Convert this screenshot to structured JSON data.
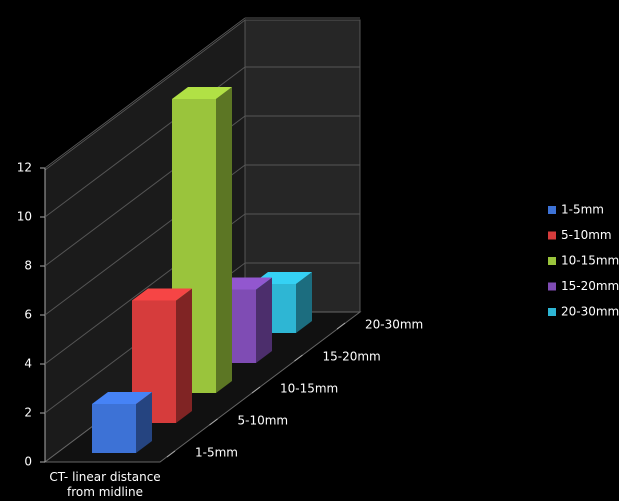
{
  "chart_data": {
    "type": "bar3d",
    "x_label": "CT- linear distance from midline",
    "categories": [
      "1-5mm",
      "5-10mm",
      "10-15mm",
      "15-20mm",
      "20-30mm"
    ],
    "values": [
      2,
      5,
      12,
      3,
      2
    ],
    "colors": [
      "#3d72d6",
      "#d63c3c",
      "#9ac43c",
      "#7f4cb4",
      "#2eb6d4"
    ],
    "ylim": [
      0,
      12
    ],
    "yticks": [
      0,
      2,
      4,
      6,
      8,
      10,
      12
    ],
    "grid": true,
    "legend": "right"
  }
}
